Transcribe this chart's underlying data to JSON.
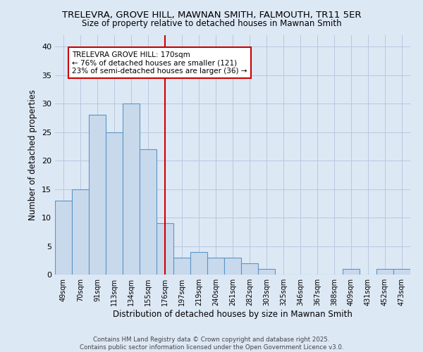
{
  "title1": "TRELEVRA, GROVE HILL, MAWNAN SMITH, FALMOUTH, TR11 5ER",
  "title2": "Size of property relative to detached houses in Mawnan Smith",
  "xlabel": "Distribution of detached houses by size in Mawnan Smith",
  "ylabel": "Number of detached properties",
  "categories": [
    "49sqm",
    "70sqm",
    "91sqm",
    "113sqm",
    "134sqm",
    "155sqm",
    "176sqm",
    "197sqm",
    "219sqm",
    "240sqm",
    "261sqm",
    "282sqm",
    "303sqm",
    "325sqm",
    "346sqm",
    "367sqm",
    "388sqm",
    "409sqm",
    "431sqm",
    "452sqm",
    "473sqm"
  ],
  "values": [
    13,
    15,
    28,
    25,
    30,
    22,
    9,
    3,
    4,
    3,
    3,
    2,
    1,
    0,
    0,
    0,
    0,
    1,
    0,
    1,
    1
  ],
  "bar_color": "#c9d9ec",
  "bar_edge_color": "#5a96c8",
  "reference_line_x": 6,
  "annotation_text_line1": "TRELEVRA GROVE HILL: 170sqm",
  "annotation_text_line2": "← 76% of detached houses are smaller (121)",
  "annotation_text_line3": "23% of semi-detached houses are larger (36) →",
  "annotation_box_color": "#ffffff",
  "annotation_box_edge_color": "#cc0000",
  "ylim": [
    0,
    42
  ],
  "yticks": [
    0,
    5,
    10,
    15,
    20,
    25,
    30,
    35,
    40
  ],
  "red_line_color": "#cc0000",
  "footer": "Contains HM Land Registry data © Crown copyright and database right 2025.\nContains public sector information licensed under the Open Government Licence v3.0.",
  "background_color": "#dde8f5",
  "grid_color": "#b8c8e0"
}
